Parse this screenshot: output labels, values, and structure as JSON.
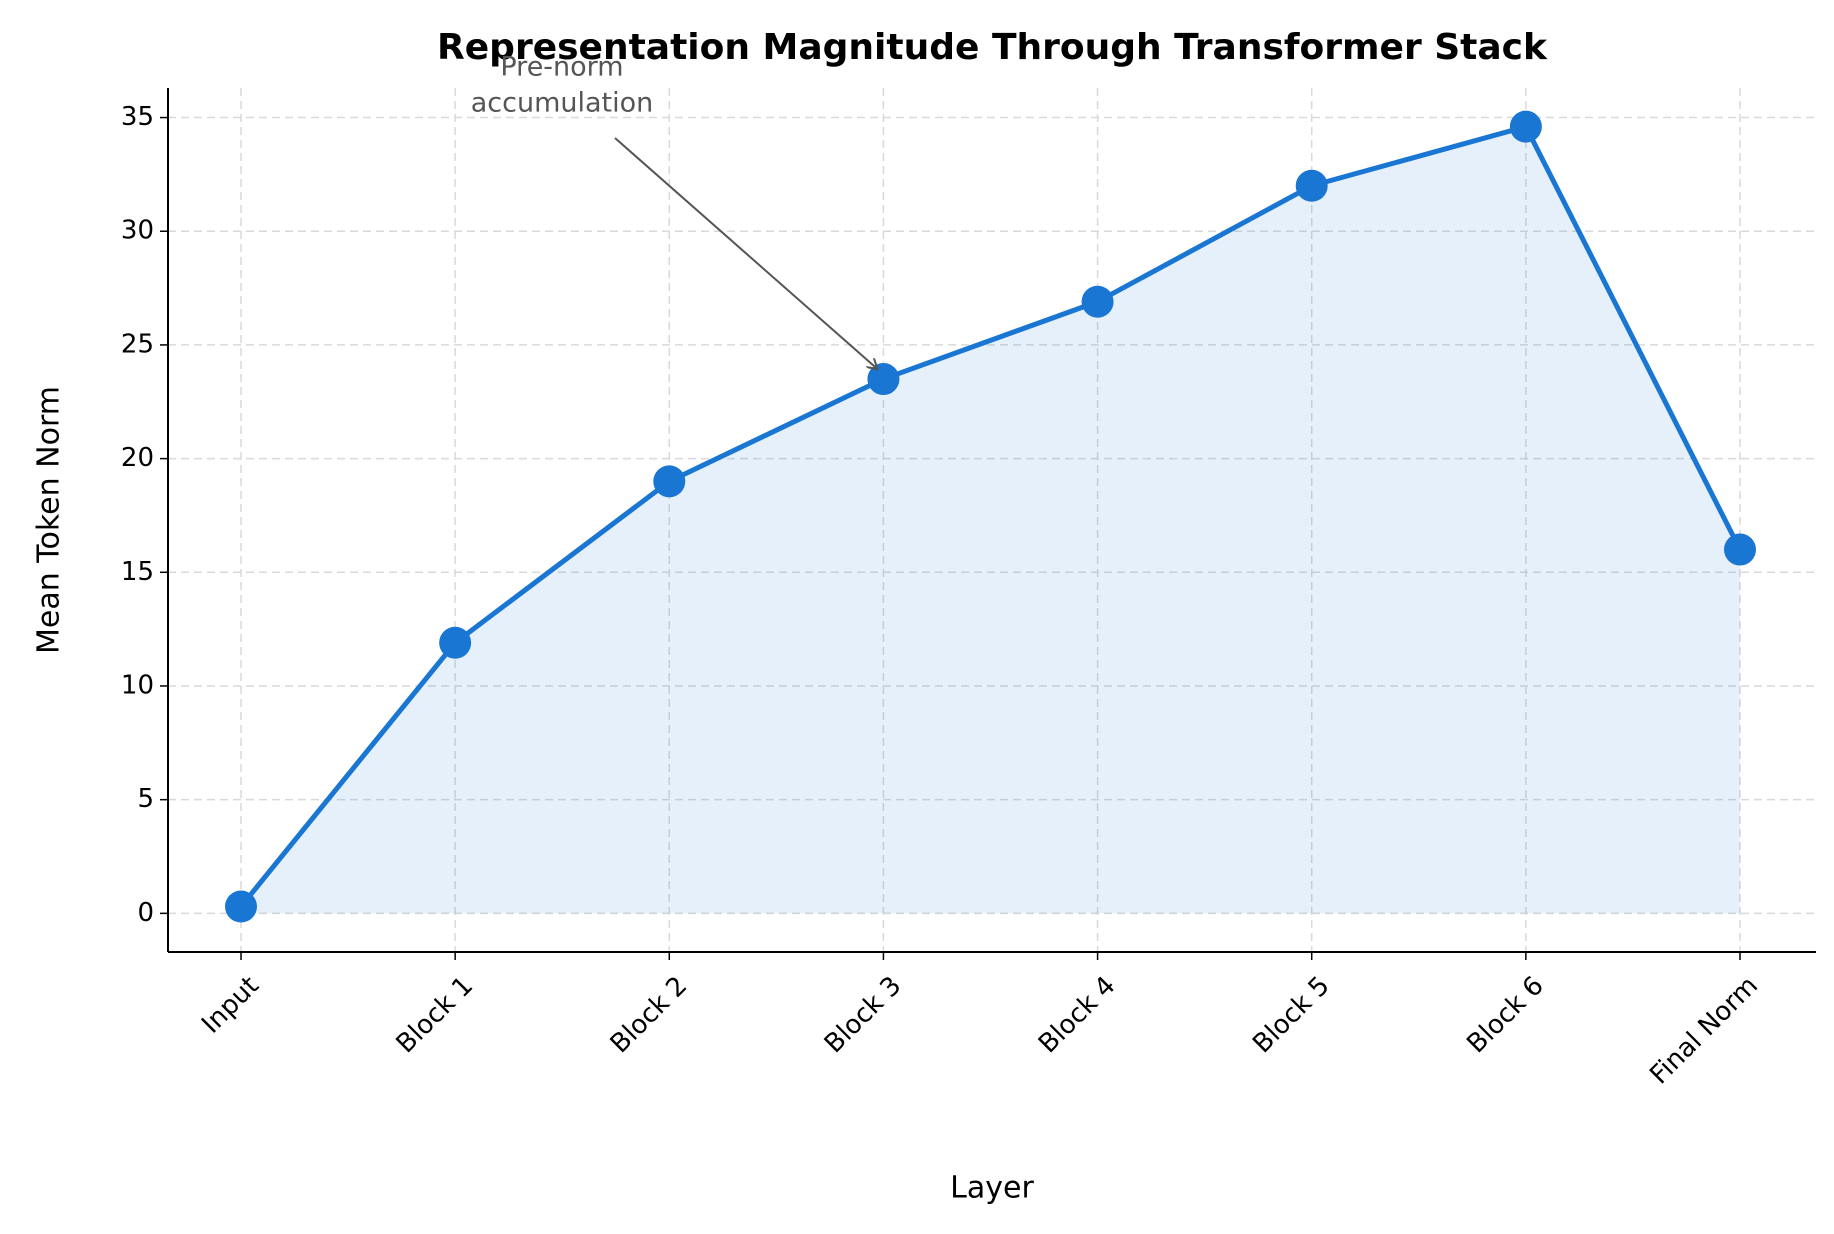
{
  "chart_data": {
    "type": "line",
    "title": "Representation Magnitude Through Transformer Stack",
    "x_label": "Layer",
    "y_label": "Mean Token Norm",
    "categories": [
      "Input",
      "Block 1",
      "Block 2",
      "Block 3",
      "Block 4",
      "Block 5",
      "Block 6",
      "Final Norm"
    ],
    "values": [
      0.3,
      11.9,
      19.0,
      23.5,
      26.9,
      32.0,
      34.6,
      16.0
    ],
    "color": "#1976d2",
    "fill_area": true,
    "ylim": [
      -1.7,
      36.3
    ],
    "yticks": [
      0,
      5,
      10,
      15,
      20,
      25,
      30,
      35
    ],
    "grid": true,
    "annotation": {
      "text": [
        "Pre-norm",
        "accumulation"
      ],
      "category_index": 3
    }
  }
}
